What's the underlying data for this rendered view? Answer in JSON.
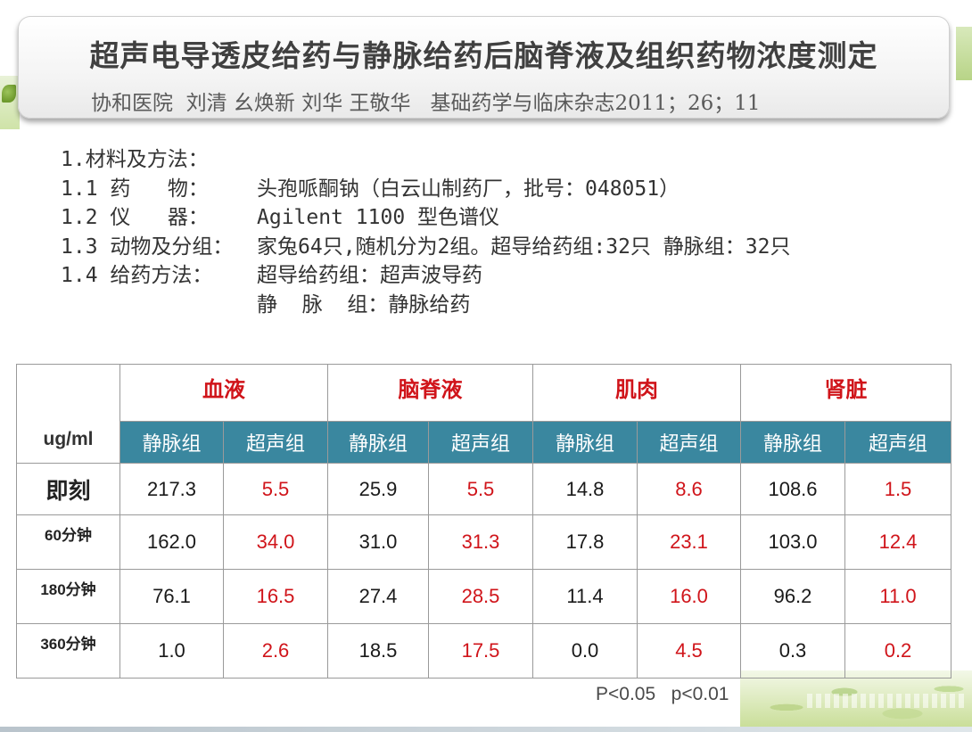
{
  "title": "超声电导透皮给药与静脉给药后脑脊液及组织药物浓度测定",
  "subtitle": "协和医院  刘清 幺焕新 刘华 王敬华   基础药学与临床杂志2011；26；11",
  "methods": {
    "heading": "1.材料及方法：",
    "items": [
      {
        "label": "1.1 药   物：",
        "value": "头孢哌酮钠（白云山制药厂，批号：048051）"
      },
      {
        "label": "1.2 仪   器：",
        "value": "Agilent 1100 型色谱仪"
      },
      {
        "label": "1.3 动物及分组：",
        "value": "家兔64只,随机分为2组。超导给药组:32只 静脉组：32只"
      },
      {
        "label": "1.4 给药方法：",
        "value": "超导给药组：超声波导药"
      },
      {
        "label": "",
        "value": "静  脉  组：静脉给药"
      }
    ]
  },
  "table": {
    "corner": "ug/ml",
    "categories": [
      "血液",
      "脑脊液",
      "肌肉",
      "肾脏"
    ],
    "subheaders": [
      "静脉组",
      "超声组"
    ],
    "rows": [
      {
        "label": "即刻",
        "values": [
          "217.3",
          "5.5",
          "25.9",
          "5.5",
          "14.8",
          "8.6",
          "108.6",
          "1.5"
        ]
      },
      {
        "label": "60分钟",
        "values": [
          "162.0",
          "34.0",
          "31.0",
          "31.3",
          "17.8",
          "23.1",
          "103.0",
          "12.4"
        ]
      },
      {
        "label": "180分钟",
        "values": [
          "76.1",
          "16.5",
          "27.4",
          "28.5",
          "11.4",
          "16.0",
          "96.2",
          "11.0"
        ]
      },
      {
        "label": "360分钟",
        "values": [
          "1.0",
          "2.6",
          "18.5",
          "17.5",
          "0.0",
          "4.5",
          "0.3",
          "0.2"
        ]
      }
    ]
  },
  "footnote": "P<0.05   p<0.01",
  "colors": {
    "header_band": "#3a879f",
    "highlight_red": "#d0141a",
    "title_text": "#404040"
  }
}
